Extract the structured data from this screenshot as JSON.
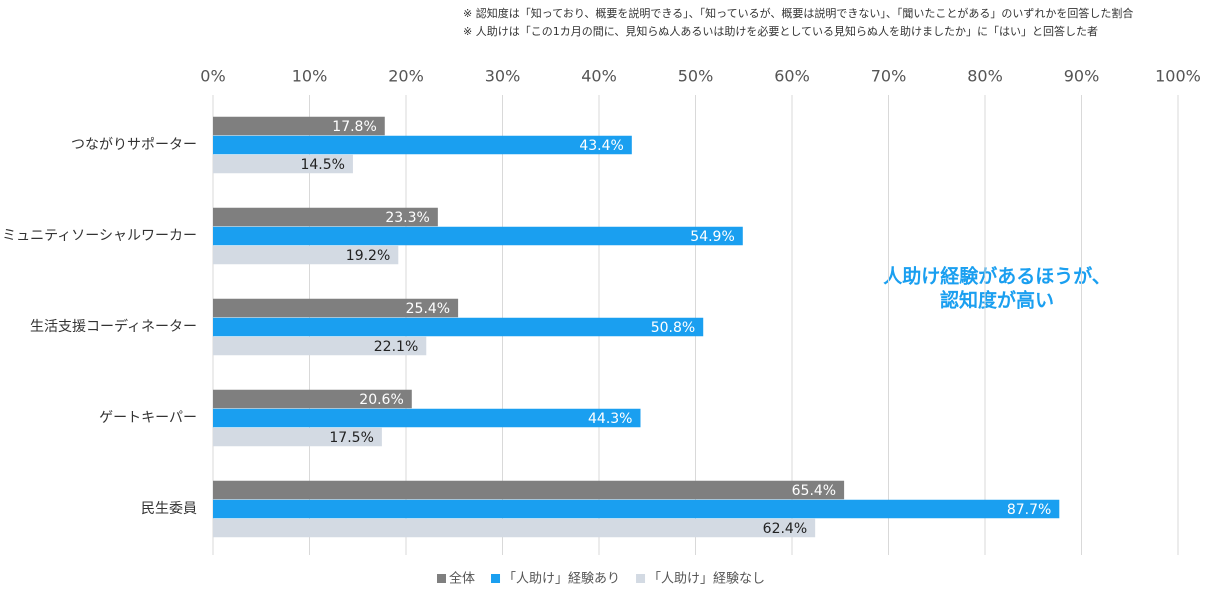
{
  "chart_data": {
    "type": "bar",
    "orientation": "horizontal",
    "notes": [
      "※ 認知度は「知っており、概要を説明できる」、「知っているが、概要は説明できない」、「聞いたことがある」のいずれかを回答した割合",
      "※ 人助けは「この1カ月の間に、見知らぬ人あるいは助けを必要としている見知らぬ人を助けましたか」に「はい」と回答した者"
    ],
    "annotation": [
      "人助け経験があるほうが、",
      "認知度が高い"
    ],
    "categories": [
      "つながりサポーター",
      "コミュニティソーシャルワーカー",
      "生活支援コーディネーター",
      "ゲートキーパー",
      "民生委員"
    ],
    "series": [
      {
        "name": "全体",
        "color": "#7f7f7f",
        "label_color": "#ffffff",
        "values": [
          17.8,
          23.3,
          25.4,
          20.6,
          65.4
        ],
        "value_labels": [
          "17.8%",
          "23.3%",
          "25.4%",
          "20.6%",
          "65.4%"
        ]
      },
      {
        "name": "「人助け」経験あり",
        "color": "#1a9ff0",
        "label_color": "#ffffff",
        "values": [
          43.4,
          54.9,
          50.8,
          44.3,
          87.7
        ],
        "value_labels": [
          "43.4%",
          "54.9%",
          "50.8%",
          "44.3%",
          "87.7%"
        ]
      },
      {
        "name": "「人助け」経験なし",
        "color": "#d3dae3",
        "label_color": "#222222",
        "values": [
          14.5,
          19.2,
          22.1,
          17.5,
          62.4
        ],
        "value_labels": [
          "14.5%",
          "19.2%",
          "22.1%",
          "17.5%",
          "62.4%"
        ]
      }
    ],
    "xlim": [
      0,
      100
    ],
    "xticks": [
      {
        "value": 0,
        "label": "0%"
      },
      {
        "value": 10,
        "label": "10%"
      },
      {
        "value": 20,
        "label": "20%"
      },
      {
        "value": 30,
        "label": "30%"
      },
      {
        "value": 40,
        "label": "40%"
      },
      {
        "value": 50,
        "label": "50%"
      },
      {
        "value": 60,
        "label": "60%"
      },
      {
        "value": 70,
        "label": "70%"
      },
      {
        "value": 80,
        "label": "80%"
      },
      {
        "value": 90,
        "label": "90%"
      },
      {
        "value": 100,
        "label": "100%"
      }
    ],
    "grid": true,
    "legend": "bottom"
  }
}
